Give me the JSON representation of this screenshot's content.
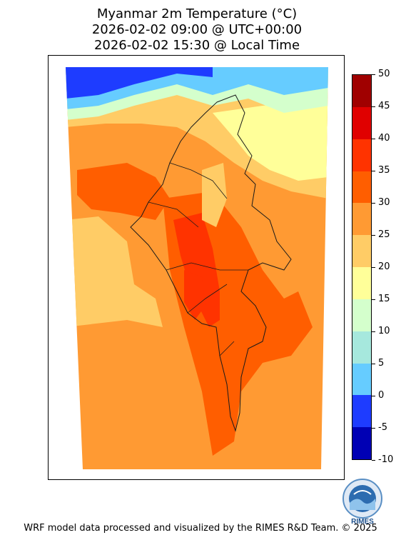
{
  "header": {
    "title_line1": "Myanmar 2m Temperature (°C)",
    "title_line2": "2026-02-02 09:00 @ UTC+00:00",
    "title_line3": "2026-02-02 15:30 @ Local Time"
  },
  "colorbar": {
    "ticks": [
      "50",
      "45",
      "40",
      "35",
      "30",
      "25",
      "20",
      "15",
      "10",
      "5",
      "0",
      "-5",
      "-10"
    ],
    "colors": [
      "#a00000",
      "#e00000",
      "#ff3300",
      "#ff5e00",
      "#ff9a33",
      "#ffcc66",
      "#ffff99",
      "#d4ffcc",
      "#a6e8dd",
      "#66ccff",
      "#1e3cff",
      "#0000b4"
    ],
    "range": [
      -10,
      50
    ],
    "unit": "°C"
  },
  "logo": {
    "text": "RIMES"
  },
  "footer": {
    "credit": "WRF model data processed and visualized by the RIMES R&D Team. © 2025"
  }
}
